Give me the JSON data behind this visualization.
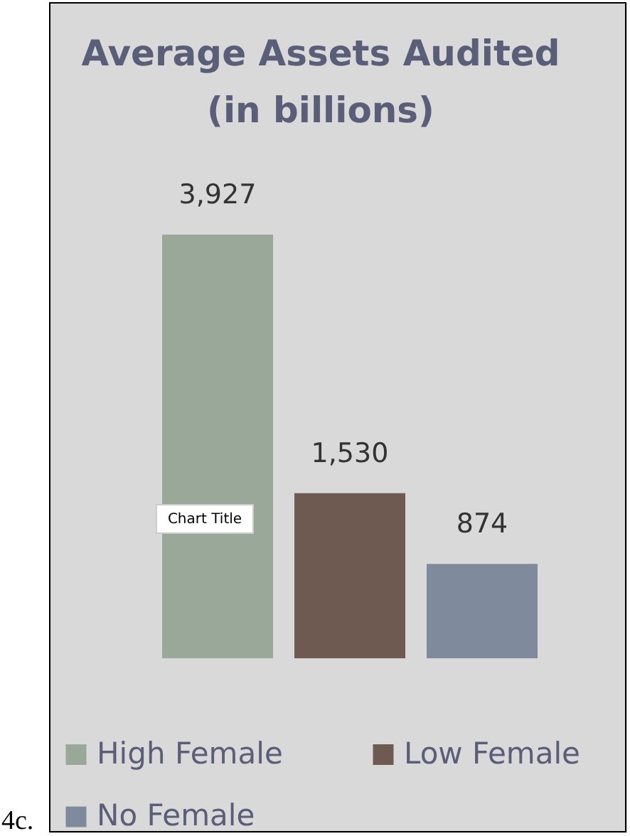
{
  "chart_data": {
    "type": "bar",
    "title": "Average Assets Audited (in billions)",
    "categories": [
      null,
      null,
      null
    ],
    "stacked": true,
    "series": [
      {
        "name": "High Female",
        "color": "#9aa89a",
        "values": [
          3927,
          null,
          null
        ],
        "value_labels": [
          "3,927",
          null,
          null
        ]
      },
      {
        "name": "Low Female",
        "color": "#6f5a51",
        "values": [
          null,
          1530,
          null
        ],
        "value_labels": [
          null,
          "1,530",
          null
        ]
      },
      {
        "name": "No Female",
        "color": "#7f8a9c",
        "values": [
          null,
          null,
          874
        ],
        "value_labels": [
          null,
          null,
          "874"
        ]
      }
    ],
    "legend": "bottom",
    "annotations": [
      "4c.",
      "Chart Title"
    ]
  }
}
